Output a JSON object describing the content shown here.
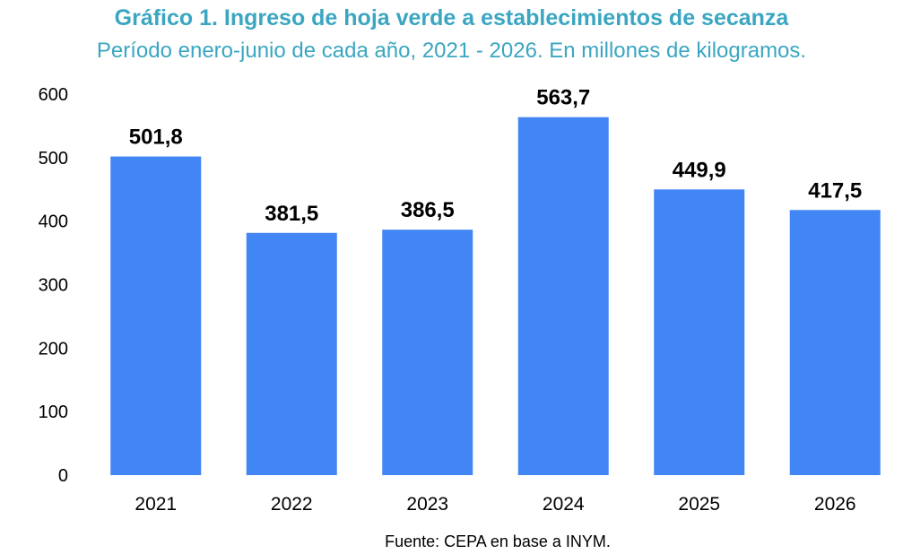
{
  "chart_data": {
    "type": "bar",
    "title": "Gráfico 1. Ingreso de hoja verde a establecimientos de secanza",
    "subtitle": "Período enero-junio de cada año, 2021 - 2026. En millones de kilogramos.",
    "categories": [
      "2021",
      "2022",
      "2023",
      "2024",
      "2025",
      "2026"
    ],
    "values": [
      501.8,
      381.5,
      386.5,
      563.7,
      449.9,
      417.5
    ],
    "data_labels": [
      "501,8",
      "381,5",
      "386,5",
      "563,7",
      "449,9",
      "417,5"
    ],
    "yticks": [
      0,
      100,
      200,
      300,
      400,
      500,
      600
    ],
    "ylim": [
      0,
      600
    ],
    "xlabel": "",
    "ylabel": "",
    "grid": false,
    "legend": "none",
    "bar_color": "#4285f4",
    "source": "Fuente: CEPA en base a INYM."
  }
}
